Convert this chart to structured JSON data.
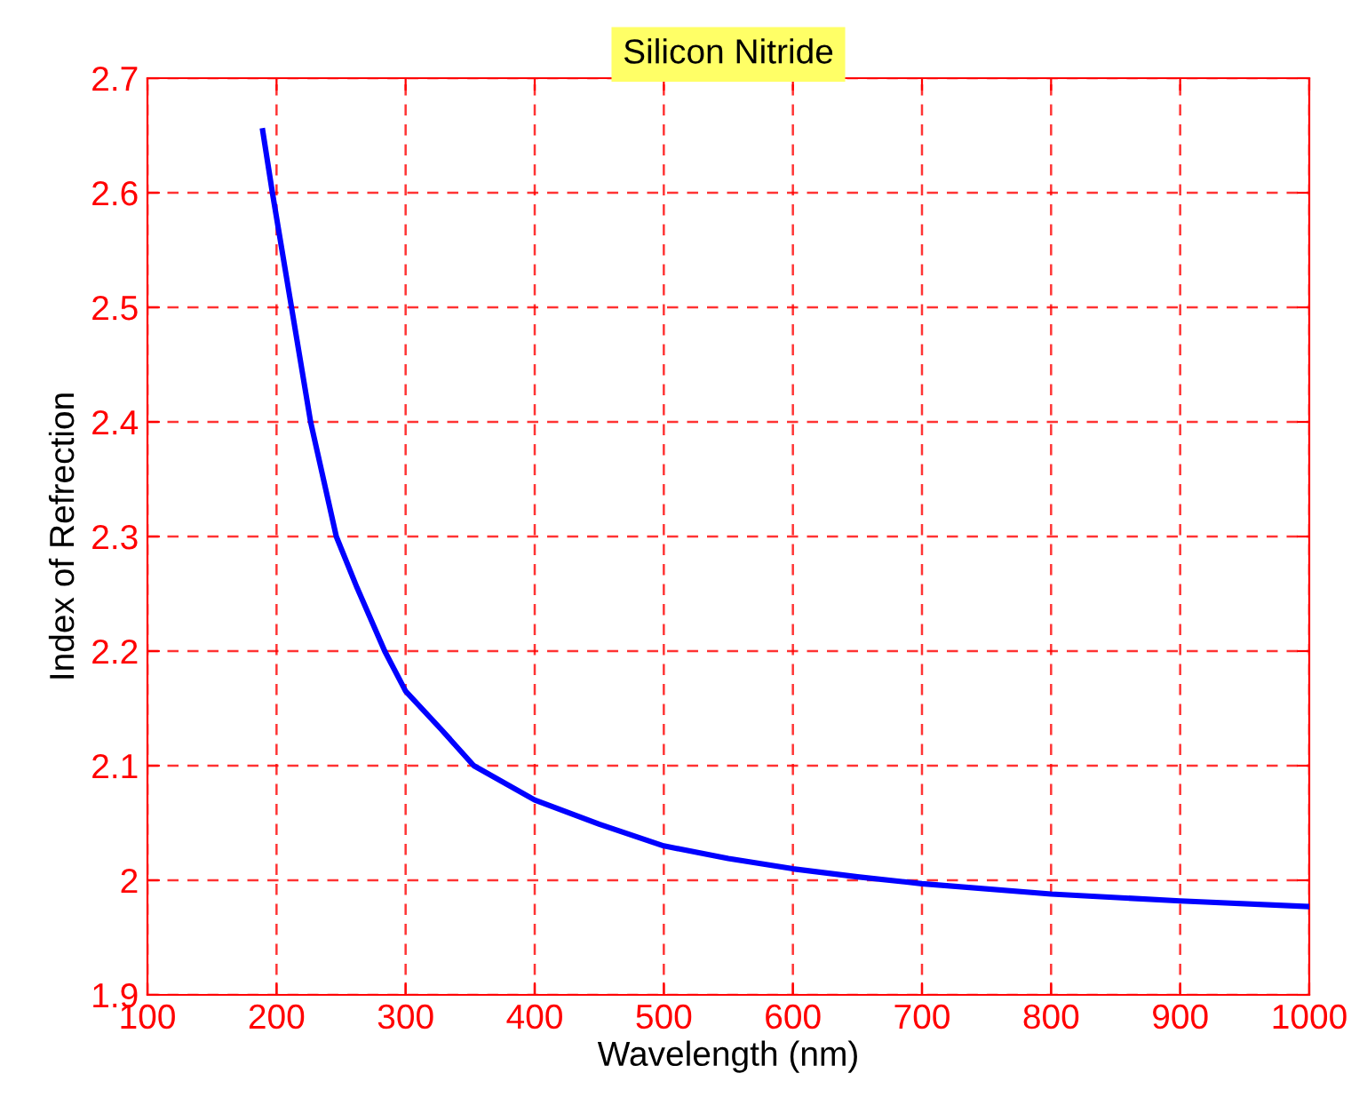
{
  "chart_data": {
    "type": "line",
    "title": "Silicon Nitride",
    "xlabel": "Wavelength (nm)",
    "ylabel": "Index of Refrection",
    "series": [
      {
        "color": "#0000ff",
        "x": [
          189.3,
          196.8,
          211.6,
          226.4,
          246.3,
          262.5,
          283.8,
          300,
          327.3,
          352.8,
          400,
          450,
          500,
          550,
          600,
          650,
          700,
          800,
          900,
          1000
        ],
        "values": [
          2.654,
          2.6,
          2.5,
          2.4,
          2.3,
          2.255,
          2.2,
          2.165,
          2.132,
          2.1,
          2.07,
          2.049,
          2.03,
          2.019,
          2.01,
          2.003,
          1.997,
          1.988,
          1.982,
          1.977
        ]
      }
    ],
    "xlim": [
      100,
      1000
    ],
    "ylim": [
      1.9,
      2.7
    ],
    "xticks": [
      100,
      200,
      300,
      400,
      500,
      600,
      700,
      800,
      900,
      1000
    ],
    "yticks": [
      1.9,
      2,
      2.1,
      2.2,
      2.3,
      2.4,
      2.5,
      2.6,
      2.7
    ],
    "grid": true,
    "line_style": "solid",
    "marker": "none"
  }
}
